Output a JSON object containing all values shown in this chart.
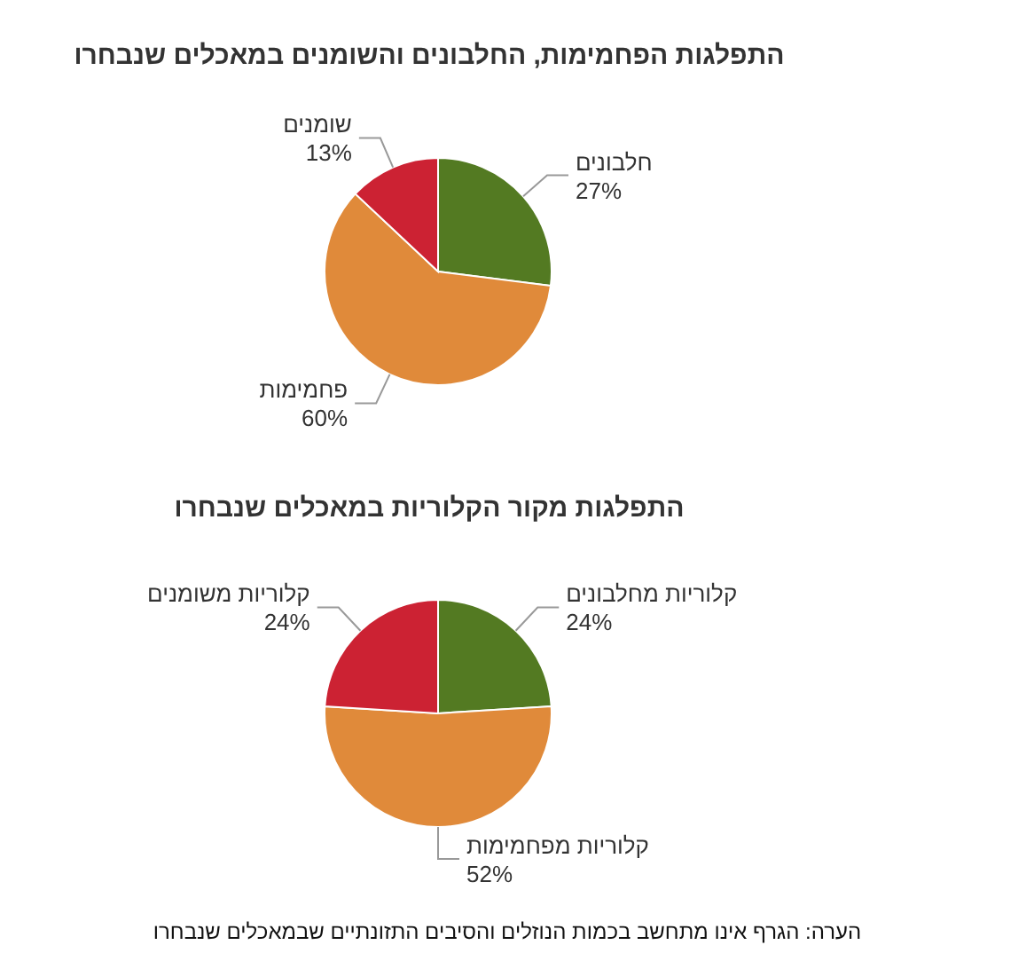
{
  "chart_data": [
    {
      "type": "pie",
      "title": "התפלגות הפחמימות, החלבונים והשומנים במאכלים שנבחרו",
      "categories": [
        "חלבונים",
        "פחמימות",
        "שומנים"
      ],
      "values": [
        27,
        60,
        13
      ],
      "value_labels": [
        "27%",
        "60%",
        "13%"
      ],
      "colors": [
        "#537a22",
        "#e08a3a",
        "#cc2233"
      ]
    },
    {
      "type": "pie",
      "title": "התפלגות מקור הקלוריות במאכלים שנבחרו",
      "categories": [
        "קלוריות מחלבונים",
        "קלוריות מפחמימות",
        "קלוריות משומנים"
      ],
      "values": [
        24,
        52,
        24
      ],
      "value_labels": [
        "24%",
        "52%",
        "24%"
      ],
      "colors": [
        "#537a22",
        "#e08a3a",
        "#cc2233"
      ],
      "annotations": [
        "הערה: הגרף אינו מתחשב בכמות הנוזלים והסיבים התזונתיים שבמאכלים שנבחרו"
      ]
    }
  ]
}
